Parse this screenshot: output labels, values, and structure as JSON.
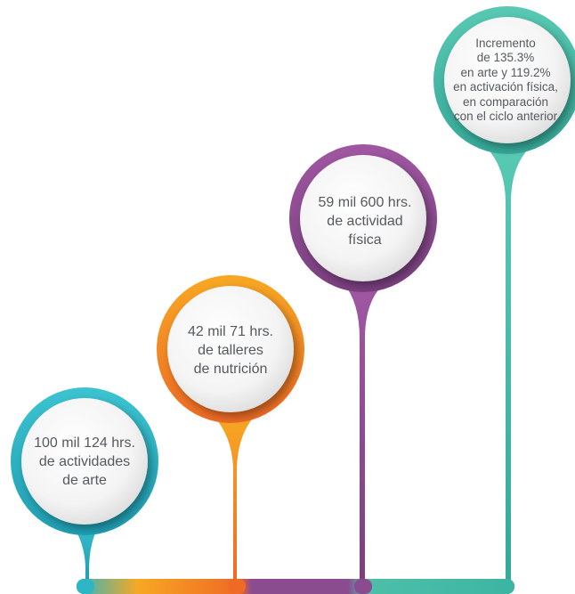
{
  "colors": {
    "teal": "#2fb6c4",
    "orange": "#f39a22",
    "purple": "#8b4c8f",
    "sea_green": "#4dbfa9",
    "text": "#555a5f"
  },
  "steps": [
    {
      "lines": [
        "100 mil 124 hrs.",
        "de actividades",
        "de arte"
      ],
      "color_name": "teal"
    },
    {
      "lines": [
        "42 mil 71 hrs.",
        "de talleres",
        "de nutrición"
      ],
      "color_name": "orange"
    },
    {
      "lines": [
        "59 mil 600 hrs.",
        "de actividad",
        "física"
      ],
      "color_name": "purple"
    },
    {
      "lines": [
        "Incremento",
        "de 135.3%",
        "en arte y 119.2%",
        "en activación física,",
        "en comparación",
        "con el ciclo anterior"
      ],
      "color_name": "sea_green"
    }
  ]
}
